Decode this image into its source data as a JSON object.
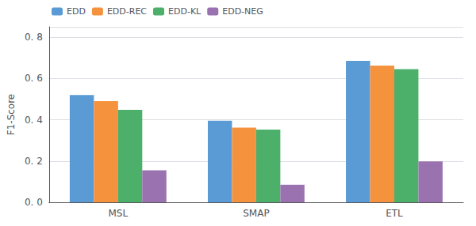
{
  "chart_data": {
    "type": "bar",
    "categories": [
      "MSL",
      "SMAP",
      "ETL"
    ],
    "series": [
      {
        "name": "EDD",
        "color": "#5B9BD5",
        "values": [
          0.52,
          0.395,
          0.685
        ]
      },
      {
        "name": "EDD-REC",
        "color": "#F5923E",
        "values": [
          0.49,
          0.362,
          0.662
        ]
      },
      {
        "name": "EDD-KL",
        "color": "#4CAF6A",
        "values": [
          0.448,
          0.352,
          0.645
        ]
      },
      {
        "name": "EDD-NEG",
        "color": "#9B72B0",
        "values": [
          0.155,
          0.085,
          0.198
        ]
      }
    ],
    "ylabel": "F1-Score",
    "ylim": [
      0.0,
      0.85
    ],
    "yticks": [
      {
        "value": 0.0,
        "label": "0. 0"
      },
      {
        "value": 0.2,
        "label": "0. 2"
      },
      {
        "value": 0.4,
        "label": "0. 4"
      },
      {
        "value": 0.6,
        "label": "0. 6"
      },
      {
        "value": 0.8,
        "label": "0. 8"
      }
    ],
    "grid": true,
    "legend": "upper left"
  }
}
